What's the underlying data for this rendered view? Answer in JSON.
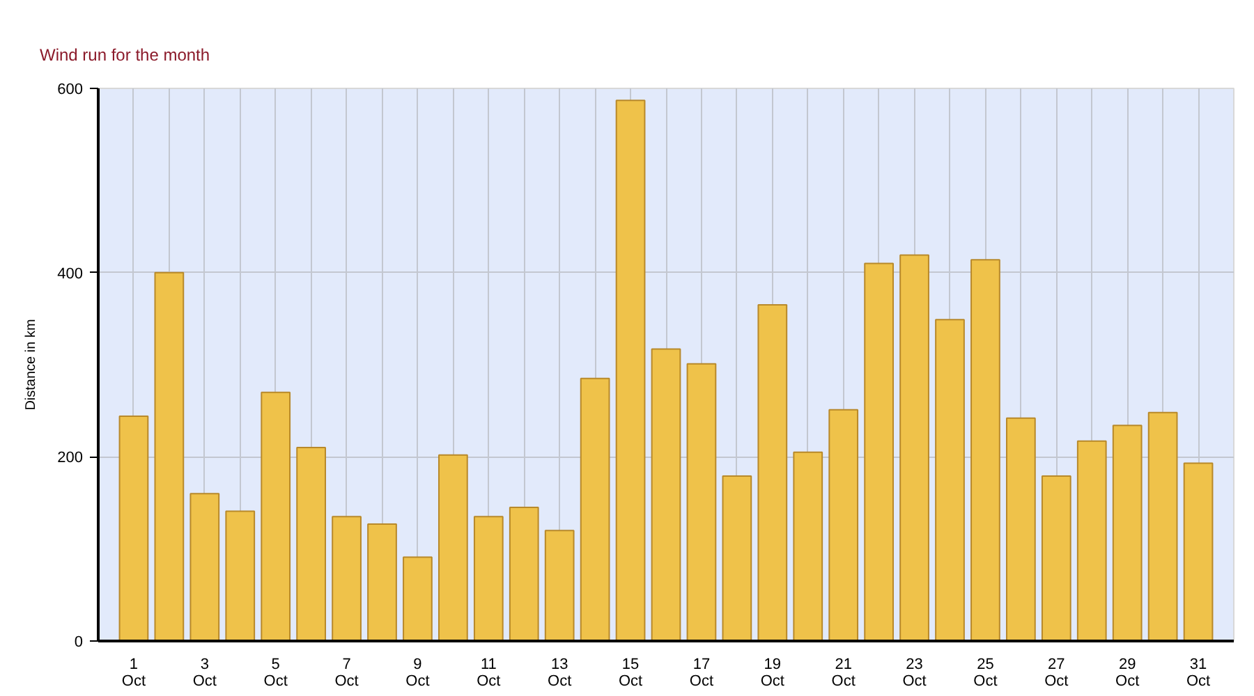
{
  "chart_data": {
    "type": "bar",
    "title": "Wind run for the month",
    "ylabel": "Distance in km",
    "categories": [
      "1\nOct",
      null,
      "3\nOct",
      null,
      "5\nOct",
      null,
      "7\nOct",
      null,
      "9\nOct",
      null,
      "11\nOct",
      null,
      "13\nOct",
      null,
      "15\nOct",
      null,
      "17\nOct",
      null,
      "19\nOct",
      null,
      "21\nOct",
      null,
      "23\nOct",
      null,
      "25\nOct",
      null,
      "27\nOct",
      null,
      "29\nOct",
      null,
      "31\nOct"
    ],
    "values": [
      244,
      400,
      160,
      141,
      270,
      210,
      135,
      127,
      91,
      202,
      135,
      145,
      120,
      285,
      587,
      317,
      301,
      179,
      365,
      205,
      251,
      410,
      419,
      349,
      414,
      242,
      179,
      217,
      234,
      248,
      193
    ],
    "color": "#efc24a",
    "ylim": [
      0,
      600
    ],
    "yticks": [
      0,
      200,
      400,
      600
    ],
    "grid": true
  }
}
